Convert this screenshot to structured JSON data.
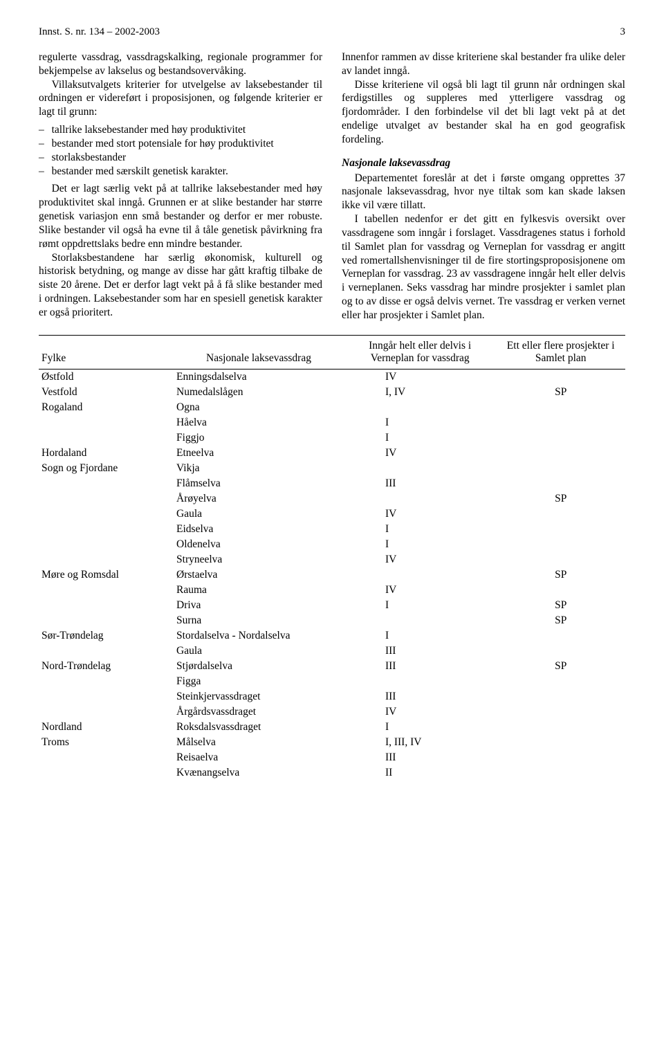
{
  "header": {
    "title": "Innst. S. nr. 134 – 2002-2003",
    "page": "3"
  },
  "left": {
    "p1": "regulerte vassdrag, vassdragskalking, regionale programmer for bekjempelse av lakselus og bestandsovervåking.",
    "p2": "Villaksutvalgets kriterier for utvelgelse av laksebestander til ordningen er videreført i proposisjonen, og følgende kriterier er lagt til grunn:",
    "bullets": [
      "tallrike laksebestander med høy produktivitet",
      "bestander med stort potensiale for høy produktivitet",
      "storlaksbestander",
      "bestander med særskilt genetisk karakter."
    ],
    "p3": "Det er lagt særlig vekt på at tallrike laksebestander med høy produktivitet skal inngå. Grunnen er at slike bestander har større genetisk variasjon enn små bestander og derfor er mer robuste. Slike bestander vil også ha evne til å tåle genetisk påvirkning fra rømt oppdrettslaks bedre enn mindre bestander.",
    "p4": "Storlaksbestandene har særlig økonomisk, kulturell og historisk betydning, og mange av disse har gått kraftig tilbake de siste 20 årene. Det er derfor lagt vekt på å få slike bestander med i ordningen. Laksebestander som har en spesiell genetisk karakter er også prioritert."
  },
  "right": {
    "p1": "Innenfor rammen av disse kriteriene skal bestander fra ulike deler av landet inngå.",
    "p2": "Disse kriteriene vil også bli lagt til grunn når ordningen skal ferdigstilles og suppleres med ytterligere vassdrag og fjordområder. I den forbindelse vil det bli lagt vekt på at det endelige utvalget av bestander skal ha en god geografisk fordeling.",
    "section": "Nasjonale laksevassdrag",
    "p3": "Departementet foreslår at det i første omgang opprettes 37 nasjonale laksevassdrag, hvor nye tiltak som kan skade laksen ikke vil være tillatt.",
    "p4": "I tabellen nedenfor er det gitt en fylkesvis oversikt over vassdragene som inngår i forslaget. Vassdragenes status i forhold til Samlet plan for vassdrag og Verneplan for vassdrag er angitt ved romertallshenvisninger til de fire stortingsproposisjonene om Verneplan for vassdrag. 23 av vassdragene inngår helt eller delvis i verneplanen. Seks vassdrag har mindre prosjekter i samlet plan og to av disse er også delvis vernet. Tre vassdrag er verken vernet eller har prosjekter i Samlet plan."
  },
  "table": {
    "headers": {
      "c1": "Fylke",
      "c2": "Nasjonale laksevassdrag",
      "c3": "Inngår helt eller delvis i Verneplan for vassdrag",
      "c4": "Ett eller flere prosjekter i Samlet plan"
    },
    "rows": [
      {
        "fylke": "Østfold",
        "vassdrag": "Enningsdalselva",
        "verne": "IV",
        "samlet": ""
      },
      {
        "fylke": "Vestfold",
        "vassdrag": "Numedalslågen",
        "verne": "I, IV",
        "samlet": "SP"
      },
      {
        "fylke": "Rogaland",
        "vassdrag": "Ogna",
        "verne": "",
        "samlet": ""
      },
      {
        "fylke": "",
        "vassdrag": "Håelva",
        "verne": "I",
        "samlet": ""
      },
      {
        "fylke": "",
        "vassdrag": "Figgjo",
        "verne": "I",
        "samlet": ""
      },
      {
        "fylke": "Hordaland",
        "vassdrag": "Etneelva",
        "verne": "IV",
        "samlet": ""
      },
      {
        "fylke": "Sogn og Fjordane",
        "vassdrag": "Vikja",
        "verne": "",
        "samlet": ""
      },
      {
        "fylke": "",
        "vassdrag": "Flåmselva",
        "verne": "III",
        "samlet": ""
      },
      {
        "fylke": "",
        "vassdrag": "Årøyelva",
        "verne": "",
        "samlet": "SP"
      },
      {
        "fylke": "",
        "vassdrag": "Gaula",
        "verne": "IV",
        "samlet": ""
      },
      {
        "fylke": "",
        "vassdrag": "Eidselva",
        "verne": "I",
        "samlet": ""
      },
      {
        "fylke": "",
        "vassdrag": "Oldenelva",
        "verne": "I",
        "samlet": ""
      },
      {
        "fylke": "",
        "vassdrag": "Stryneelva",
        "verne": "IV",
        "samlet": ""
      },
      {
        "fylke": "Møre og Romsdal",
        "vassdrag": "Ørstaelva",
        "verne": "",
        "samlet": "SP"
      },
      {
        "fylke": "",
        "vassdrag": "Rauma",
        "verne": "IV",
        "samlet": ""
      },
      {
        "fylke": "",
        "vassdrag": "Driva",
        "verne": "I",
        "samlet": "SP"
      },
      {
        "fylke": "",
        "vassdrag": "Surna",
        "verne": "",
        "samlet": "SP"
      },
      {
        "fylke": "Sør-Trøndelag",
        "vassdrag": "Stordalselva - Nordalselva",
        "verne": "I",
        "samlet": ""
      },
      {
        "fylke": "",
        "vassdrag": "Gaula",
        "verne": "III",
        "samlet": ""
      },
      {
        "fylke": "Nord-Trøndelag",
        "vassdrag": "Stjørdalselva",
        "verne": "III",
        "samlet": "SP"
      },
      {
        "fylke": "",
        "vassdrag": "Figga",
        "verne": "",
        "samlet": ""
      },
      {
        "fylke": "",
        "vassdrag": "Steinkjervassdraget",
        "verne": "III",
        "samlet": ""
      },
      {
        "fylke": "",
        "vassdrag": "Årgårdsvassdraget",
        "verne": "IV",
        "samlet": ""
      },
      {
        "fylke": "Nordland",
        "vassdrag": "Roksdalsvassdraget",
        "verne": "I",
        "samlet": ""
      },
      {
        "fylke": "Troms",
        "vassdrag": "Målselva",
        "verne": "I, III, IV",
        "samlet": ""
      },
      {
        "fylke": "",
        "vassdrag": "Reisaelva",
        "verne": "III",
        "samlet": ""
      },
      {
        "fylke": "",
        "vassdrag": "Kvænangselva",
        "verne": "II",
        "samlet": ""
      }
    ]
  }
}
